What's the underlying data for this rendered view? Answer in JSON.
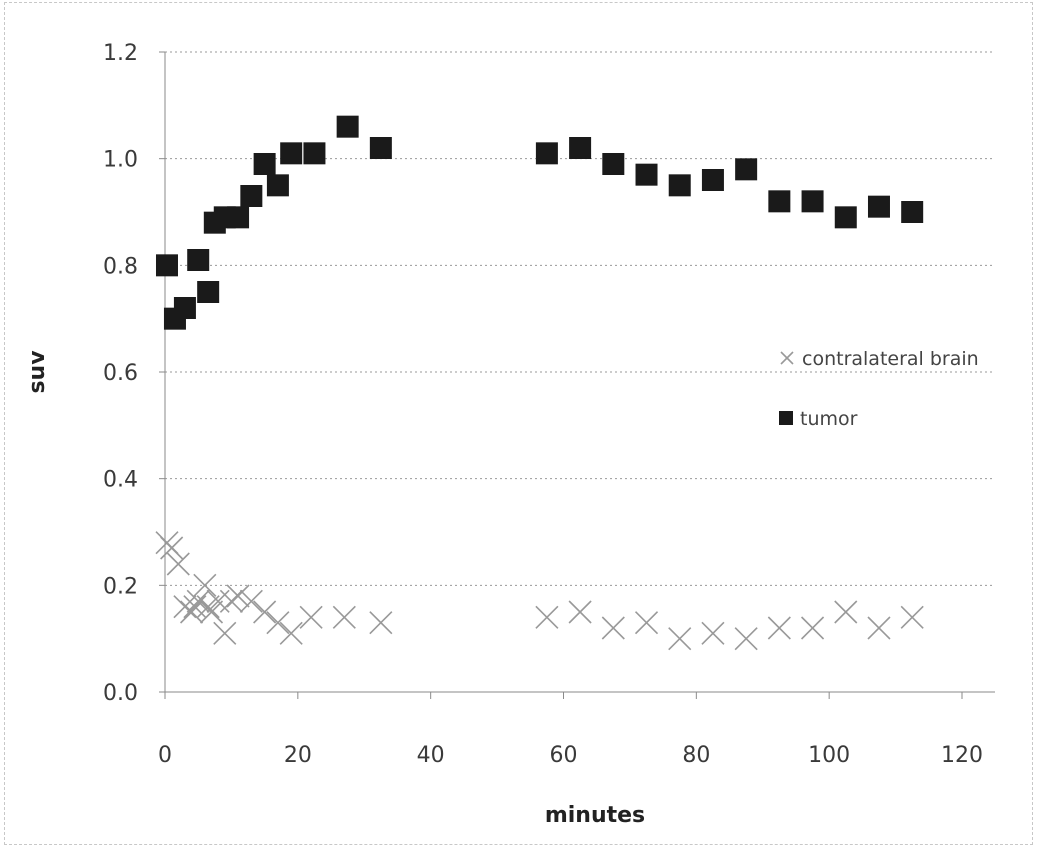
{
  "chart_data": {
    "type": "scatter",
    "title": "",
    "xlabel": "minutes",
    "ylabel": "suv",
    "xlim": [
      0,
      120
    ],
    "ylim": [
      0.0,
      1.2
    ],
    "x_ticks": [
      0,
      20,
      40,
      60,
      80,
      100,
      120
    ],
    "x_tick_labels": [
      "0",
      "20",
      "40",
      "60",
      "80",
      "100",
      "120"
    ],
    "y_ticks": [
      0.0,
      0.2,
      0.4,
      0.6,
      0.8,
      1.0,
      1.2
    ],
    "y_tick_labels": [
      "0.0",
      "0.2",
      "0.4",
      "0.6",
      "0.8",
      "1.0",
      "1.2"
    ],
    "grid": true,
    "legend_position": "right-middle",
    "series": [
      {
        "name": "contralateral brain",
        "marker": "x",
        "color": "#999999",
        "points": [
          [
            0.3,
            0.28
          ],
          [
            1,
            0.27
          ],
          [
            2,
            0.24
          ],
          [
            3,
            0.16
          ],
          [
            4,
            0.15
          ],
          [
            4.5,
            0.16
          ],
          [
            5,
            0.17
          ],
          [
            6,
            0.2
          ],
          [
            6.5,
            0.16
          ],
          [
            7,
            0.15
          ],
          [
            8,
            0.17
          ],
          [
            9,
            0.11
          ],
          [
            10,
            0.17
          ],
          [
            11,
            0.18
          ],
          [
            13,
            0.17
          ],
          [
            15,
            0.15
          ],
          [
            17,
            0.13
          ],
          [
            19,
            0.11
          ],
          [
            22,
            0.14
          ],
          [
            27,
            0.14
          ],
          [
            32.5,
            0.13
          ],
          [
            57.5,
            0.14
          ],
          [
            62.5,
            0.15
          ],
          [
            67.5,
            0.12
          ],
          [
            72.5,
            0.13
          ],
          [
            77.5,
            0.1
          ],
          [
            82.5,
            0.11
          ],
          [
            87.5,
            0.1
          ],
          [
            92.5,
            0.12
          ],
          [
            97.5,
            0.12
          ],
          [
            102.5,
            0.15
          ],
          [
            107.5,
            0.12
          ],
          [
            112.5,
            0.14
          ]
        ]
      },
      {
        "name": "tumor",
        "marker": "square",
        "color": "#1a1a1a",
        "points": [
          [
            0.3,
            0.8
          ],
          [
            1.5,
            0.7
          ],
          [
            3,
            0.72
          ],
          [
            5,
            0.81
          ],
          [
            6.5,
            0.75
          ],
          [
            7.5,
            0.88
          ],
          [
            9,
            0.89
          ],
          [
            11,
            0.89
          ],
          [
            13,
            0.93
          ],
          [
            15,
            0.99
          ],
          [
            17,
            0.95
          ],
          [
            19,
            1.01
          ],
          [
            22.5,
            1.01
          ],
          [
            27.5,
            1.06
          ],
          [
            32.5,
            1.02
          ],
          [
            57.5,
            1.01
          ],
          [
            62.5,
            1.02
          ],
          [
            67.5,
            0.99
          ],
          [
            72.5,
            0.97
          ],
          [
            77.5,
            0.95
          ],
          [
            82.5,
            0.96
          ],
          [
            87.5,
            0.98
          ],
          [
            92.5,
            0.92
          ],
          [
            97.5,
            0.92
          ],
          [
            102.5,
            0.89
          ],
          [
            107.5,
            0.91
          ],
          [
            112.5,
            0.9
          ]
        ]
      }
    ]
  }
}
